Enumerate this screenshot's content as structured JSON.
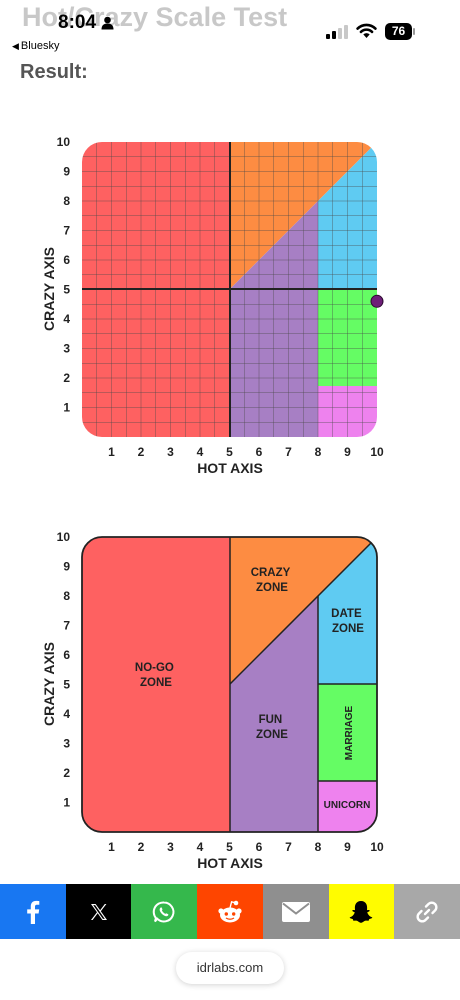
{
  "page": {
    "title": "Hot/Crazy Scale Test",
    "result_label": "Result:"
  },
  "status_bar": {
    "time": "8:04",
    "back_app": "Bluesky",
    "battery": "76"
  },
  "chart_data": [
    {
      "type": "scatter",
      "xlabel": "HOT AXIS",
      "ylabel": "CRAZY AXIS",
      "xlim": [
        0,
        10
      ],
      "ylim": [
        0,
        10
      ],
      "x_ticks": [
        "1",
        "2",
        "3",
        "4",
        "5",
        "6",
        "7",
        "8",
        "9",
        "10"
      ],
      "y_ticks": [
        "1",
        "2",
        "3",
        "4",
        "5",
        "6",
        "7",
        "8",
        "9",
        "10"
      ],
      "grid": true,
      "points": [
        {
          "x": 10,
          "y": 4.6
        }
      ]
    },
    {
      "type": "area",
      "xlabel": "HOT AXIS",
      "ylabel": "CRAZY AXIS",
      "xlim": [
        0,
        10
      ],
      "ylim": [
        0,
        10
      ],
      "x_ticks": [
        "1",
        "2",
        "3",
        "4",
        "5",
        "6",
        "7",
        "8",
        "9",
        "10"
      ],
      "y_ticks": [
        "1",
        "2",
        "3",
        "4",
        "5",
        "6",
        "7",
        "8",
        "9",
        "10"
      ],
      "grid": false,
      "zones": [
        "NO-GO ZONE",
        "CRAZY ZONE",
        "FUN ZONE",
        "DATE ZONE",
        "MARRIAGE",
        "UNICORN"
      ]
    }
  ],
  "share": {
    "url": "idrlabs.com"
  },
  "colors": {
    "nogo": "#fe6161",
    "crazy": "#fd8c42",
    "fun": "#a77fc4",
    "date": "#5fcbf2",
    "marriage": "#65fc64",
    "unicorn": "#ee82ee",
    "facebook": "#1877f2",
    "x": "#000000",
    "whatsapp": "#35b84c",
    "reddit": "#fe4500",
    "email": "#8f8f8f",
    "snapchat": "#fffc00",
    "link": "#a8a8a8"
  }
}
